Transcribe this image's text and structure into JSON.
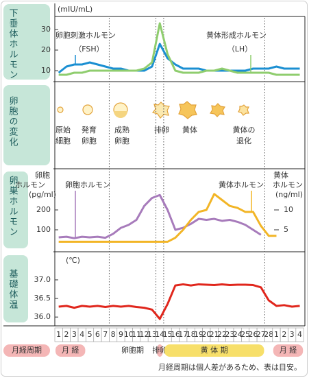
{
  "panel_labels": [
    "下垂体ホルモン",
    "卵胞の変化",
    "卵巣ホルモン",
    "基礎体温"
  ],
  "chart_data": [
    {
      "type": "line",
      "unit": "(mIU/mL)",
      "ylim": [
        6,
        37
      ],
      "yticks": [
        10,
        20,
        30
      ],
      "series": [
        {
          "name": "卵胞刺激ホルモン",
          "abbr": "（FSH）",
          "color": "#1b8fd2",
          "values": [
            9,
            12,
            13,
            13,
            14,
            13,
            12,
            11,
            11,
            10,
            10,
            10,
            12,
            23,
            16,
            13,
            11,
            11,
            11,
            10,
            10,
            10,
            10,
            10,
            10,
            11,
            11,
            11,
            12,
            11,
            11,
            11
          ]
        },
        {
          "name": "黄体形成ホルモン",
          "abbr": "（LH）",
          "color": "#8fcd6e",
          "values": [
            8,
            8,
            9,
            9,
            10,
            10,
            10,
            10,
            10,
            10,
            10,
            11,
            14,
            33,
            18,
            10,
            9,
            9,
            9,
            10,
            10,
            11,
            10,
            9,
            9,
            9,
            9,
            9,
            8,
            8,
            8,
            8
          ]
        }
      ]
    },
    {
      "type": "line",
      "y_label": [
        "卵胞",
        "ホルモン",
        "(pg/ml)"
      ],
      "y2_label": [
        "黄体",
        "ホルモン",
        "(ng/ml)"
      ],
      "ylim": [
        0,
        400
      ],
      "yticks": [
        100,
        200
      ],
      "y2lim": [
        0,
        20
      ],
      "y2ticks": [
        5,
        10
      ],
      "series": [
        {
          "name": "卵胞ホルモン",
          "color": "#a77bbb",
          "values": [
            62,
            65,
            58,
            65,
            62,
            65,
            60,
            80,
            110,
            125,
            150,
            220,
            260,
            275,
            200,
            100,
            110,
            130,
            155,
            150,
            155,
            145,
            150,
            140,
            125,
            100,
            75,
            null,
            null,
            null,
            null,
            null
          ]
        },
        {
          "name": "黄体ホルモン",
          "color": "#f2b526",
          "axis": "y2",
          "values": [
            2,
            2,
            2,
            2,
            2,
            2,
            2,
            2,
            2,
            2,
            2,
            2,
            2,
            2,
            2,
            3,
            5,
            7.5,
            9.5,
            10,
            14,
            12.5,
            11,
            10.5,
            9.5,
            9.5,
            6,
            3.5,
            3.5,
            null,
            null,
            null
          ]
        }
      ]
    },
    {
      "type": "line",
      "unit": "(℃)",
      "ylim": [
        35.8,
        37.7
      ],
      "yticks": [
        {
          "value": 36,
          "label": "36.0"
        },
        36.5,
        {
          "value": 37,
          "label": "37.0"
        }
      ],
      "series": [
        {
          "color": "#e0261c",
          "values": [
            36.28,
            36.3,
            36.25,
            36.3,
            36.28,
            36.3,
            36.27,
            36.3,
            36.28,
            36.3,
            36.27,
            36.25,
            36.2,
            35.95,
            36.35,
            36.85,
            36.88,
            36.85,
            36.88,
            36.87,
            36.86,
            36.88,
            36.86,
            36.87,
            36.87,
            36.86,
            36.8,
            36.45,
            36.3,
            36.32,
            36.28,
            36.3
          ]
        }
      ]
    }
  ],
  "follicle": {
    "stages": [
      [
        "原始",
        "細胞"
      ],
      [
        "発育",
        "卵胞"
      ],
      [
        "成熟",
        "卵胞"
      ],
      [
        "排卵"
      ],
      [
        "黄体"
      ],
      [
        "黄体の",
        "退化"
      ]
    ]
  },
  "timeline": {
    "label": "月経周期",
    "days": [
      1,
      2,
      3,
      4,
      5,
      6,
      7,
      8,
      9,
      10,
      11,
      12,
      13,
      14,
      15,
      16,
      17,
      18,
      19,
      20,
      21,
      22,
      23,
      24,
      25,
      26,
      27,
      28,
      1,
      2,
      3,
      4
    ],
    "phases": [
      "月 経",
      "卵胞期",
      "排卵",
      "黄 体 期",
      "月 経"
    ]
  },
  "note": "月経周期は個人差があるため、表は目安。"
}
